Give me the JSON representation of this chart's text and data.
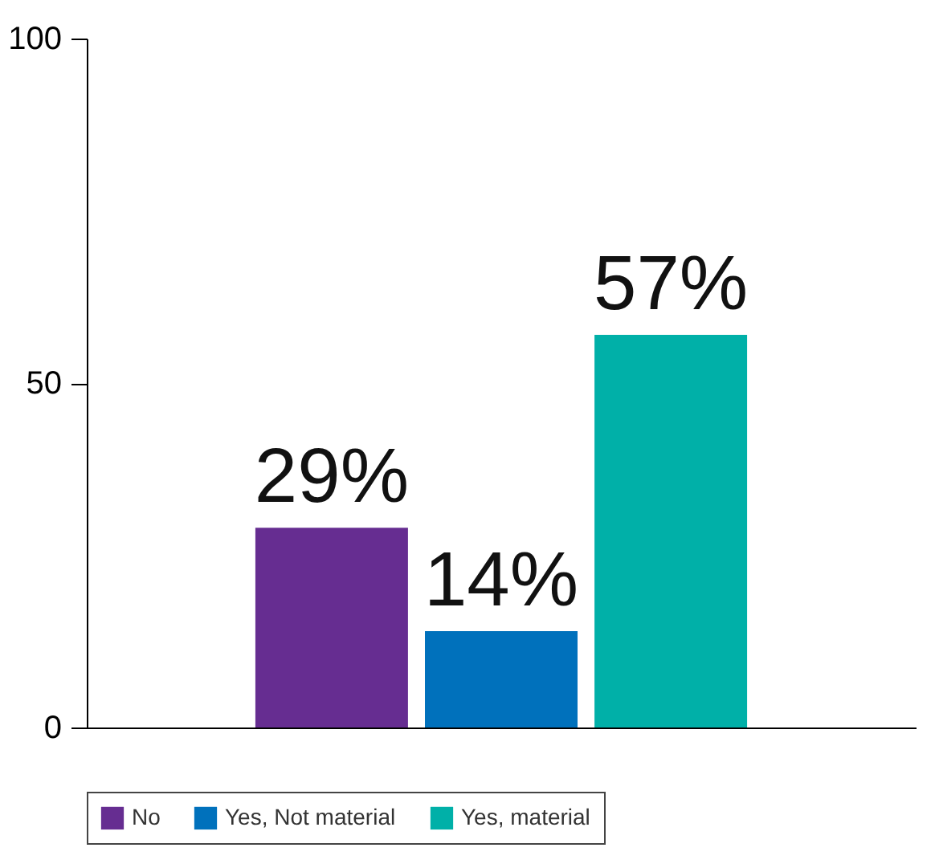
{
  "chart_data": {
    "type": "bar",
    "categories": [
      null
    ],
    "series": [
      {
        "name": "No",
        "color": "#662d91",
        "values": [
          29
        ],
        "value_labels": [
          "29%"
        ]
      },
      {
        "name": "Yes, Not material",
        "color": "#0071bc",
        "values": [
          14
        ],
        "value_labels": [
          "14%"
        ]
      },
      {
        "name": "Yes, material",
        "color": "#00b0a8",
        "values": [
          57
        ],
        "value_labels": [
          "57%"
        ]
      }
    ],
    "ylim": [
      0,
      100
    ],
    "yticks": [
      0,
      50,
      100
    ],
    "grid": false,
    "legend": "bottom",
    "tick_labels": "y"
  }
}
